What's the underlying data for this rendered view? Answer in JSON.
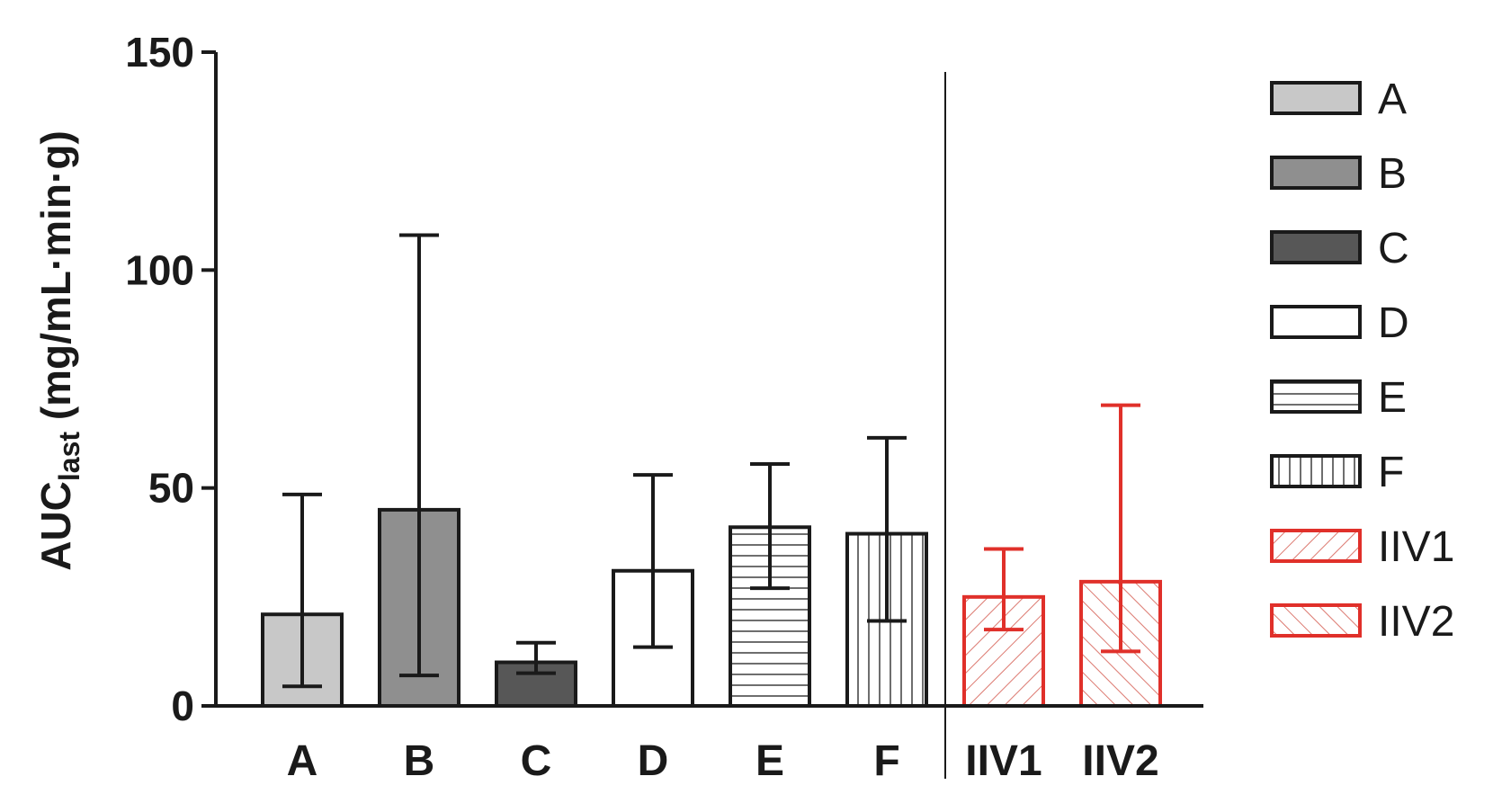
{
  "chart_data": {
    "type": "bar",
    "ylabel_main": "AUC",
    "ylabel_sub": "last",
    "ylabel_unit": " (mg/mL·min·g)",
    "ylim": [
      0,
      150
    ],
    "yticks": [
      0,
      50,
      100,
      150
    ],
    "categories": [
      "A",
      "B",
      "C",
      "D",
      "E",
      "F",
      "IIV1",
      "IIV2"
    ],
    "values": [
      21,
      45,
      10,
      31,
      41,
      39.5,
      25,
      28.5
    ],
    "error_upper": [
      48.5,
      108,
      14.5,
      53,
      55.5,
      61.5,
      36,
      69
    ],
    "error_lower": [
      4.5,
      7,
      7.5,
      13.5,
      27,
      19.5,
      17.5,
      12.5
    ],
    "grid": false,
    "separator_after": "F",
    "legend_position": "right",
    "legend": [
      {
        "label": "A",
        "fill": "solid",
        "color": "#c8c8c8",
        "edge": "#1a1a1a"
      },
      {
        "label": "B",
        "fill": "solid",
        "color": "#8f8f8f",
        "edge": "#1a1a1a"
      },
      {
        "label": "C",
        "fill": "solid",
        "color": "#575757",
        "edge": "#1a1a1a"
      },
      {
        "label": "D",
        "fill": "solid",
        "color": "#ffffff",
        "edge": "#1a1a1a"
      },
      {
        "label": "E",
        "fill": "horizontal-lines",
        "color": "#ffffff",
        "edge": "#1a1a1a"
      },
      {
        "label": "F",
        "fill": "vertical-lines",
        "color": "#ffffff",
        "edge": "#1a1a1a"
      },
      {
        "label": "IIV1",
        "fill": "diagonal-down",
        "color": "#ffffff",
        "edge": "#e0302a"
      },
      {
        "label": "IIV2",
        "fill": "diagonal-up",
        "color": "#ffffff",
        "edge": "#e0302a"
      }
    ],
    "colors": {
      "axis": "#1a1a1a",
      "red": "#e0302a"
    }
  }
}
